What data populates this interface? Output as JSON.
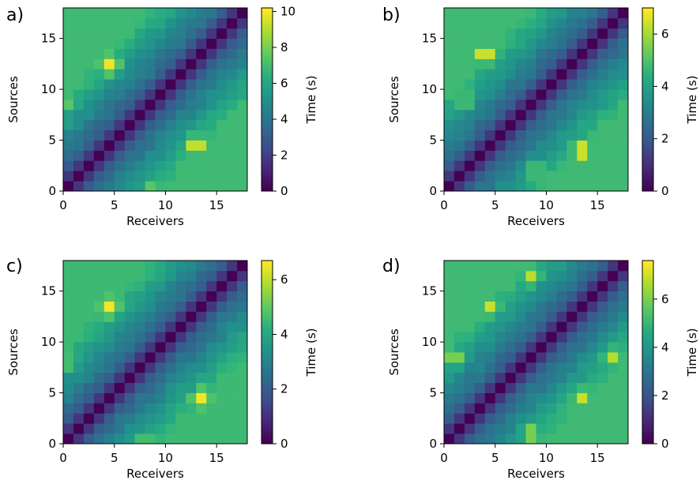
{
  "chart_data": [
    {
      "type": "heatmap",
      "panel_label": "a)",
      "xlabel": "Receivers",
      "ylabel": "Sources",
      "xticks": [
        0,
        5,
        10,
        15
      ],
      "yticks": [
        0,
        5,
        10,
        15
      ],
      "xlim": [
        0,
        18
      ],
      "ylim": [
        0,
        18
      ],
      "grid_size": 18,
      "colorbar": {
        "label": "Time (s)",
        "ticks": [
          0,
          2,
          4,
          6,
          8,
          10
        ],
        "range": [
          0,
          10.2
        ]
      },
      "hotspots": [
        {
          "x": 4.5,
          "y": 12.5,
          "v": 10.0
        },
        {
          "x": 13.0,
          "y": 4.5,
          "v": 10.0
        },
        {
          "x": 0.5,
          "y": 8.5,
          "v": 7.5
        },
        {
          "x": 8.5,
          "y": 0.5,
          "v": 7.5
        },
        {
          "x": 17.5,
          "y": 8.5,
          "v": 6.5
        },
        {
          "x": 8.5,
          "y": 17.5,
          "v": 6.5
        }
      ]
    },
    {
      "type": "heatmap",
      "panel_label": "b)",
      "xlabel": "Receivers",
      "ylabel": "Sources",
      "xticks": [
        0,
        5,
        10,
        15
      ],
      "yticks": [
        0,
        5,
        10,
        15
      ],
      "xlim": [
        0,
        18
      ],
      "ylim": [
        0,
        18
      ],
      "grid_size": 18,
      "colorbar": {
        "label": "Time (s)",
        "ticks": [
          0,
          2,
          4,
          6
        ],
        "range": [
          0,
          7.0
        ]
      },
      "hotspots": [
        {
          "x": 4.0,
          "y": 13.5,
          "v": 7.0
        },
        {
          "x": 13.5,
          "y": 4.0,
          "v": 7.0
        },
        {
          "x": 2.0,
          "y": 9.0,
          "v": 5.5
        },
        {
          "x": 9.0,
          "y": 2.0,
          "v": 5.5
        }
      ]
    },
    {
      "type": "heatmap",
      "panel_label": "c)",
      "xlabel": "Receivers",
      "ylabel": "Sources",
      "xticks": [
        0,
        5,
        10,
        15
      ],
      "yticks": [
        0,
        5,
        10,
        15
      ],
      "xlim": [
        0,
        18
      ],
      "ylim": [
        0,
        18
      ],
      "grid_size": 18,
      "colorbar": {
        "label": "Time (s)",
        "ticks": [
          0,
          2,
          4,
          6
        ],
        "range": [
          0,
          6.7
        ]
      },
      "hotspots": [
        {
          "x": 4.5,
          "y": 13.5,
          "v": 6.6
        },
        {
          "x": 13.5,
          "y": 4.5,
          "v": 6.6
        },
        {
          "x": 0.5,
          "y": 8.0,
          "v": 5.0
        },
        {
          "x": 8.0,
          "y": 0.5,
          "v": 5.0
        },
        {
          "x": 17.0,
          "y": 8.0,
          "v": 5.0
        },
        {
          "x": 8.0,
          "y": 17.0,
          "v": 5.0
        }
      ]
    },
    {
      "type": "heatmap",
      "panel_label": "d)",
      "xlabel": "Receivers",
      "ylabel": "Sources",
      "xticks": [
        0,
        5,
        10,
        15
      ],
      "yticks": [
        0,
        5,
        10,
        15
      ],
      "xlim": [
        0,
        18
      ],
      "ylim": [
        0,
        18
      ],
      "grid_size": 18,
      "colorbar": {
        "label": "Time (s)",
        "ticks": [
          0,
          2,
          4,
          6
        ],
        "range": [
          0,
          7.6
        ]
      },
      "hotspots": [
        {
          "x": 4.5,
          "y": 13.5,
          "v": 7.0
        },
        {
          "x": 13.5,
          "y": 4.5,
          "v": 7.0
        },
        {
          "x": 1.0,
          "y": 8.5,
          "v": 6.5
        },
        {
          "x": 8.5,
          "y": 1.0,
          "v": 6.5
        },
        {
          "x": 8.5,
          "y": 16.5,
          "v": 6.8
        },
        {
          "x": 16.5,
          "y": 8.5,
          "v": 6.8
        }
      ]
    }
  ]
}
